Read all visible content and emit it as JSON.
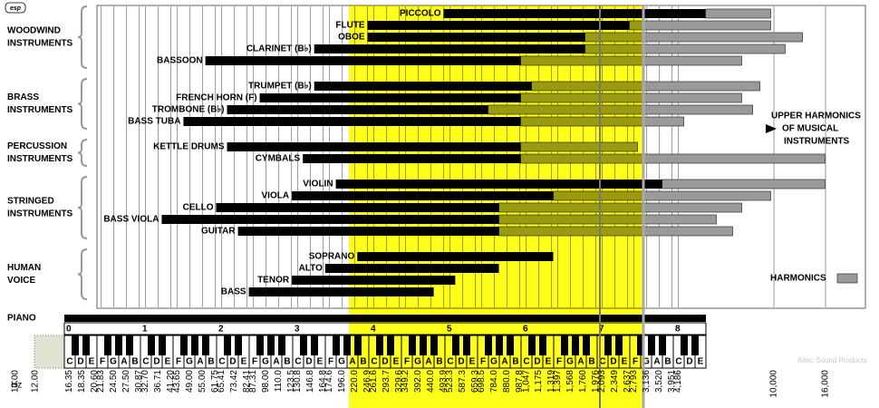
{
  "logo": "esp",
  "hz_label": "Hz",
  "piano_label": "PIANO",
  "watermark": "Altec Sound Products",
  "note_lines": [
    "UPPER HARMONICS",
    "OF MUSICAL",
    "INSTRUMENTS"
  ],
  "chart_data": {
    "type": "range",
    "xscale": "log",
    "xlim": [
      10,
      23000
    ],
    "fundamental_color": "#000000",
    "harmonic_color": "#9a9a9a",
    "grid": true,
    "legend": "HARMONICS",
    "xticks": [
      {
        "value": 10,
        "label": "10.00"
      },
      {
        "value": 12,
        "label": "12.00"
      },
      16.35,
      18.35,
      {
        "value": 20.6,
        "label": "20.60"
      },
      21.83,
      {
        "value": 24.5,
        "label": "24.50"
      },
      {
        "value": 27.5,
        "label": "27.50"
      },
      30.87,
      {
        "value": 32.7,
        "label": "32.70"
      },
      36.71,
      {
        "value": 41.2,
        "label": "41.20"
      },
      43.65,
      {
        "value": 49,
        "label": "49.00"
      },
      {
        "value": 55,
        "label": "55.00"
      },
      61.75,
      65.41,
      73.42,
      82.41,
      87.31,
      {
        "value": 98,
        "label": "98.00"
      },
      {
        "value": 110,
        "label": "110.0"
      },
      123.5,
      130.8,
      146.8,
      164.8,
      174.6,
      {
        "value": 196,
        "label": "196.0"
      },
      {
        "value": 220,
        "label": "220.0"
      },
      246.9,
      261.6,
      293.7,
      329.6,
      349.2,
      {
        "value": 392,
        "label": "392.0"
      },
      {
        "value": 440,
        "label": "440.0"
      },
      493.9,
      523.3,
      587.3,
      659.3,
      698.5,
      {
        "value": 784,
        "label": "784.0"
      },
      {
        "value": 880,
        "label": "880.0"
      },
      987.8,
      {
        "value": 1047,
        "label": "1,047"
      },
      {
        "value": 1175,
        "label": "1,175"
      },
      {
        "value": 1319,
        "label": "1,319"
      },
      {
        "value": 1397,
        "label": "1,397"
      },
      {
        "value": 1568,
        "label": "1,568"
      },
      {
        "value": 1760,
        "label": "1,760"
      },
      {
        "value": 1976,
        "label": "1,976"
      },
      {
        "value": 2093,
        "label": "2,093"
      },
      {
        "value": 2349,
        "label": "2,349"
      },
      {
        "value": 2637,
        "label": "2,637"
      },
      {
        "value": 2793,
        "label": "2,793"
      },
      {
        "value": 3136,
        "label": "3,136"
      },
      {
        "value": 3520,
        "label": "3,520"
      },
      {
        "value": 3951,
        "label": "3,951"
      },
      {
        "value": 4186,
        "label": "4,186"
      },
      {
        "value": 10000,
        "label": "10,000"
      },
      {
        "value": 16000,
        "label": "16,000"
      }
    ],
    "groups": [
      {
        "lines": [
          "WOODWIND",
          "INSTRUMENTS"
        ],
        "items": [
          {
            "name": "PICCOLO",
            "low": 494,
            "high": 5360,
            "harmonics": 9710
          },
          {
            "name": "FLUTE",
            "low": 247,
            "high": 2680,
            "harmonics": 9710
          },
          {
            "name": "OBOE",
            "low": 247,
            "high": 1790,
            "harmonics": 12970
          },
          {
            "name": "CLARINET (B♭)",
            "low": 152,
            "high": 1790,
            "harmonics": 11080
          },
          {
            "name": "BASSOON",
            "low": 56.4,
            "high": 996,
            "harmonics": 7460
          }
        ]
      },
      {
        "lines": [
          "BRASS",
          "INSTRUMENTS"
        ],
        "items": [
          {
            "name": "TRUMPET (B♭)",
            "low": 152,
            "high": 1100,
            "harmonics": 8800
          },
          {
            "name": "FRENCH HORN (F)",
            "low": 92.5,
            "high": 996,
            "harmonics": 7460
          },
          {
            "name": "TROMBONE (B♭)",
            "low": 68.7,
            "high": 740,
            "harmonics": 8240
          },
          {
            "name": "BASS TUBA",
            "low": 46.2,
            "high": 996,
            "harmonics": 4400
          }
        ]
      },
      {
        "lines": [
          "PERCUSSION",
          "INSTRUMENTS"
        ],
        "items": [
          {
            "name": "KETTLE DRUMS",
            "low": 68.7,
            "high": 996,
            "harmonics": 2890
          },
          {
            "name": "CYMBALS",
            "low": 137,
            "high": 996,
            "harmonics": 15900
          }
        ]
      },
      {
        "lines": [
          "STRINGED",
          "INSTRUMENTS"
        ],
        "items": [
          {
            "name": "VIOLIN",
            "low": 185,
            "high": 3610,
            "harmonics": 15900
          },
          {
            "name": "VIOLA",
            "low": 124,
            "high": 1340,
            "harmonics": 9710
          },
          {
            "name": "CELLO",
            "low": 62.2,
            "high": 817,
            "harmonics": 7460
          },
          {
            "name": "BASS VIOLA",
            "low": 37.9,
            "high": 817,
            "harmonics": 5920
          },
          {
            "name": "GUITAR",
            "low": 75.9,
            "high": 817,
            "harmonics": 6870
          }
        ]
      },
      {
        "lines": [
          "HUMAN",
          "VOICE"
        ],
        "items": [
          {
            "name": "SOPRANO",
            "low": 225,
            "high": 1340
          },
          {
            "name": "ALTO",
            "low": 168,
            "high": 817
          },
          {
            "name": "TENOR",
            "low": 124,
            "high": 549
          },
          {
            "name": "BASS",
            "low": 83.8,
            "high": 451
          }
        ]
      }
    ],
    "octaves": [
      0,
      1,
      2,
      3,
      4,
      5,
      6,
      7,
      8
    ],
    "notes": [
      "C",
      "D",
      "E",
      "F",
      "G",
      "A",
      "B",
      "C",
      "D",
      "E",
      "F",
      "G",
      "A",
      "B",
      "C",
      "D",
      "E",
      "F",
      "G",
      "A",
      "B",
      "C",
      "D",
      "E",
      "F",
      "G",
      "A",
      "B",
      "C",
      "D",
      "E",
      "F",
      "G",
      "A",
      "B",
      "C",
      "D",
      "E",
      "F",
      "G",
      "A",
      "B",
      "C",
      "D",
      "E",
      "F",
      "G",
      "A",
      "B",
      "C",
      "D",
      "E",
      "F",
      "G",
      "A",
      "B",
      "C",
      "D",
      "E"
    ]
  }
}
